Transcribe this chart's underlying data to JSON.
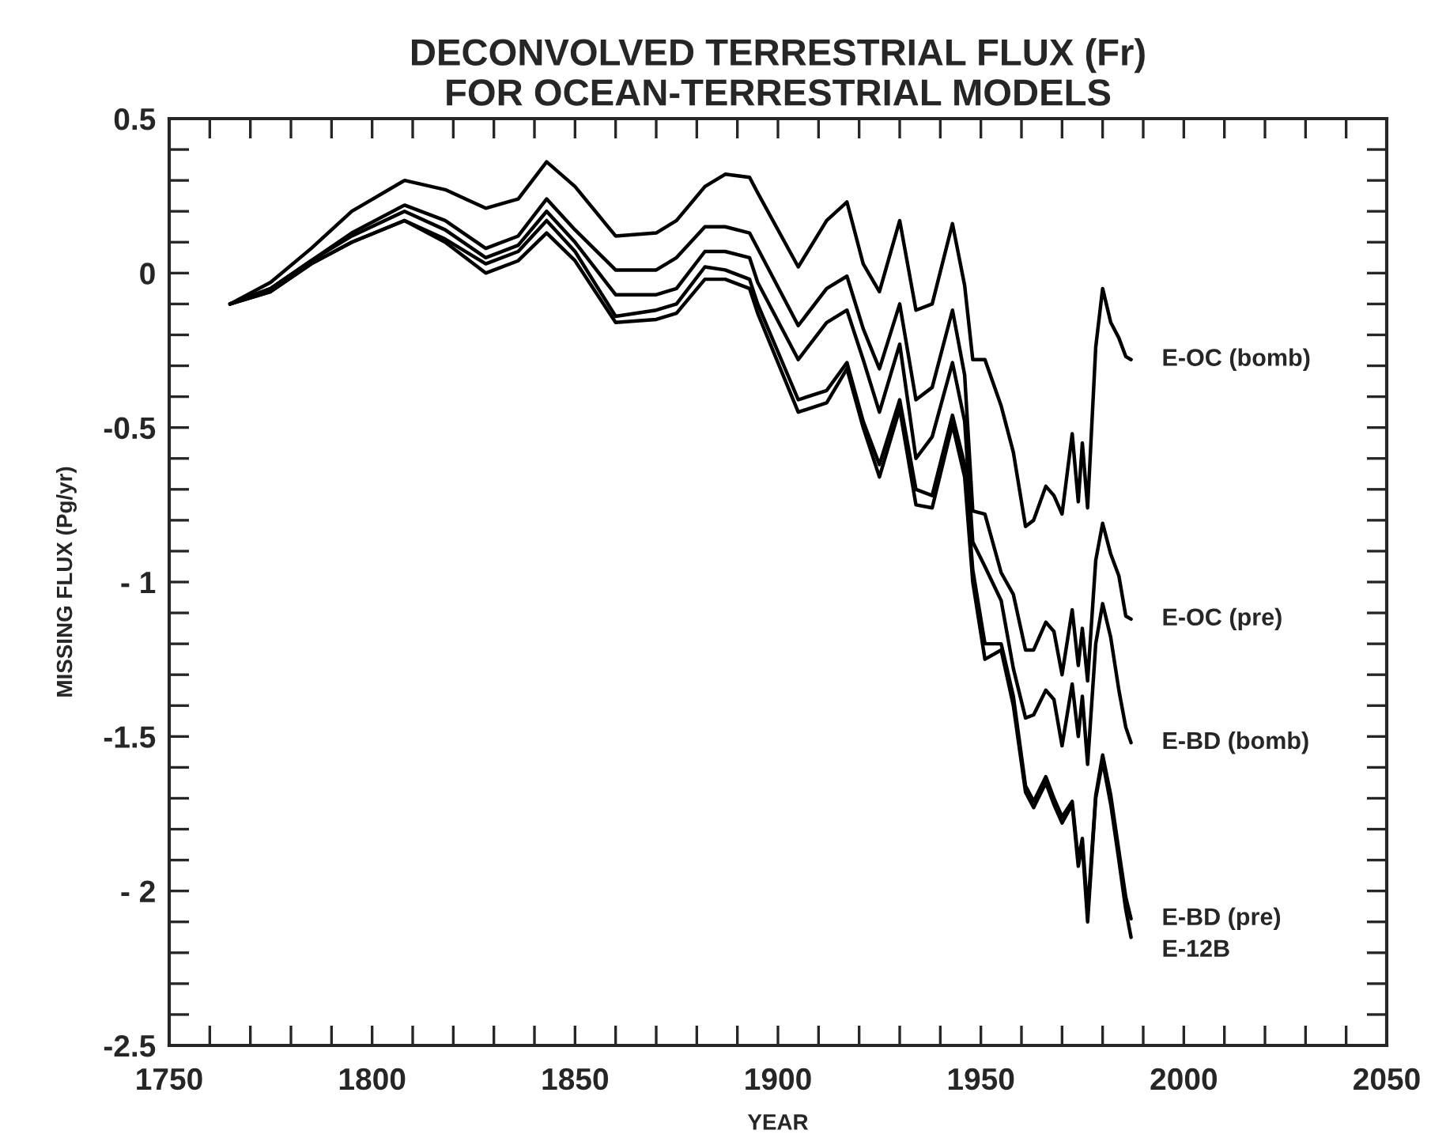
{
  "chart_data": {
    "type": "line",
    "title": "DECONVOLVED TERRESTRIAL FLUX (Fr)\nFOR OCEAN-TERRESTRIAL MODELS",
    "xlabel": "YEAR",
    "ylabel": "MISSING FLUX (Pg/yr)",
    "xlim": [
      1750,
      2050
    ],
    "ylim": [
      -2.5,
      0.5
    ],
    "grid": false,
    "legend": false,
    "marker": "none",
    "line_style": "solid",
    "xticks": [
      1750,
      {
        "value": 1760,
        "label": null
      },
      {
        "value": 1770,
        "label": null
      },
      {
        "value": 1780,
        "label": null
      },
      {
        "value": 1790,
        "label": null
      },
      1800,
      {
        "value": 1810,
        "label": null
      },
      {
        "value": 1820,
        "label": null
      },
      {
        "value": 1830,
        "label": null
      },
      {
        "value": 1840,
        "label": null
      },
      1850,
      {
        "value": 1860,
        "label": null
      },
      {
        "value": 1870,
        "label": null
      },
      {
        "value": 1880,
        "label": null
      },
      {
        "value": 1890,
        "label": null
      },
      1900,
      {
        "value": 1910,
        "label": null
      },
      {
        "value": 1920,
        "label": null
      },
      {
        "value": 1930,
        "label": null
      },
      {
        "value": 1940,
        "label": null
      },
      1950,
      {
        "value": 1960,
        "label": null
      },
      {
        "value": 1970,
        "label": null
      },
      {
        "value": 1980,
        "label": null
      },
      {
        "value": 1990,
        "label": null
      },
      2000,
      {
        "value": 2010,
        "label": null
      },
      {
        "value": 2020,
        "label": null
      },
      {
        "value": 2030,
        "label": null
      },
      {
        "value": 2040,
        "label": null
      },
      2050
    ],
    "yticks": [
      {
        "value": -2.5,
        "label": "-2.5"
      },
      {
        "value": -2.4,
        "label": null
      },
      {
        "value": -2.3,
        "label": null
      },
      {
        "value": -2.2,
        "label": null
      },
      {
        "value": -2.1,
        "label": null
      },
      {
        "value": -2,
        "label": "- 2"
      },
      {
        "value": -1.9,
        "label": null
      },
      {
        "value": -1.8,
        "label": null
      },
      {
        "value": -1.7,
        "label": null
      },
      {
        "value": -1.6,
        "label": null
      },
      {
        "value": -1.5,
        "label": "-1.5"
      },
      {
        "value": -1.4,
        "label": null
      },
      {
        "value": -1.3,
        "label": null
      },
      {
        "value": -1.2,
        "label": null
      },
      {
        "value": -1.1,
        "label": null
      },
      {
        "value": -1,
        "label": "- 1"
      },
      {
        "value": -0.9,
        "label": null
      },
      {
        "value": -0.8,
        "label": null
      },
      {
        "value": -0.7,
        "label": null
      },
      {
        "value": -0.6,
        "label": null
      },
      {
        "value": -0.5,
        "label": "-0.5"
      },
      {
        "value": -0.4,
        "label": null
      },
      {
        "value": -0.3,
        "label": null
      },
      {
        "value": -0.2,
        "label": null
      },
      {
        "value": -0.1,
        "label": null
      },
      0,
      {
        "value": 0.1,
        "label": null
      },
      {
        "value": 0.2,
        "label": null
      },
      {
        "value": 0.3,
        "label": null
      },
      {
        "value": 0.4,
        "label": null
      },
      0.5
    ],
    "x": [
      1765,
      1775,
      1785,
      1795,
      1808,
      1818,
      1828,
      1836,
      1843,
      1850,
      1860,
      1870,
      1875,
      1882,
      1887,
      1893,
      1895,
      1905,
      1912,
      1917,
      1921,
      1925,
      1930,
      1934,
      1938,
      1943,
      1946,
      1948,
      1951,
      1955,
      1958,
      1961,
      1963,
      1966,
      1968,
      1970,
      1972.5,
      1974,
      1975,
      1976.3,
      1978.3,
      1980,
      1982,
      1984,
      1985.7,
      1987
    ],
    "series": [
      {
        "name": "E-OC (bomb)",
        "color": "#000000",
        "values": [
          -0.1,
          -0.03,
          0.08,
          0.2,
          0.3,
          0.27,
          0.21,
          0.24,
          0.36,
          0.28,
          0.12,
          0.13,
          0.17,
          0.28,
          0.32,
          0.31,
          0.26,
          0.02,
          0.17,
          0.23,
          0.03,
          -0.06,
          0.17,
          -0.12,
          -0.1,
          0.16,
          -0.04,
          -0.28,
          -0.28,
          -0.43,
          -0.58,
          -0.82,
          -0.8,
          -0.69,
          -0.72,
          -0.78,
          -0.52,
          -0.74,
          -0.55,
          -0.76,
          -0.24,
          -0.05,
          -0.16,
          -0.21,
          -0.27,
          -0.28
        ]
      },
      {
        "name": "E-OC (pre)",
        "color": "#000000",
        "values": [
          -0.1,
          -0.05,
          0.04,
          0.13,
          0.22,
          0.17,
          0.08,
          0.12,
          0.24,
          0.14,
          0.01,
          0.01,
          0.05,
          0.15,
          0.15,
          0.13,
          0.08,
          -0.17,
          -0.05,
          -0.01,
          -0.18,
          -0.31,
          -0.1,
          -0.41,
          -0.37,
          -0.12,
          -0.33,
          -0.77,
          -0.78,
          -0.97,
          -1.04,
          -1.22,
          -1.22,
          -1.13,
          -1.16,
          -1.3,
          -1.09,
          -1.27,
          -1.15,
          -1.32,
          -0.93,
          -0.81,
          -0.91,
          -0.98,
          -1.11,
          -1.12
        ]
      },
      {
        "name": "E-BD (bomb)",
        "color": "#000000",
        "values": [
          -0.1,
          -0.05,
          0.04,
          0.12,
          0.2,
          0.14,
          0.05,
          0.09,
          0.2,
          0.1,
          -0.07,
          -0.07,
          -0.05,
          0.07,
          0.07,
          0.05,
          -0.03,
          -0.28,
          -0.16,
          -0.12,
          -0.28,
          -0.45,
          -0.23,
          -0.6,
          -0.53,
          -0.29,
          -0.48,
          -0.87,
          -0.95,
          -1.06,
          -1.28,
          -1.44,
          -1.43,
          -1.35,
          -1.38,
          -1.53,
          -1.33,
          -1.5,
          -1.37,
          -1.59,
          -1.2,
          -1.07,
          -1.18,
          -1.35,
          -1.47,
          -1.52
        ]
      },
      {
        "name": "E-BD (pre)",
        "color": "#000000",
        "values": [
          -0.1,
          -0.06,
          0.03,
          0.1,
          0.17,
          0.11,
          0.03,
          0.07,
          0.17,
          0.07,
          -0.14,
          -0.12,
          -0.1,
          0.02,
          0.01,
          -0.02,
          -0.1,
          -0.41,
          -0.38,
          -0.29,
          -0.48,
          -0.62,
          -0.41,
          -0.7,
          -0.72,
          -0.46,
          -0.62,
          -0.96,
          -1.2,
          -1.2,
          -1.37,
          -1.66,
          -1.71,
          -1.63,
          -1.7,
          -1.76,
          -1.71,
          -1.9,
          -1.83,
          -2.07,
          -1.69,
          -1.56,
          -1.69,
          -1.87,
          -2.02,
          -2.09
        ]
      },
      {
        "name": "E-12B",
        "color": "#000000",
        "values": [
          -0.1,
          -0.06,
          0.03,
          0.1,
          0.17,
          0.1,
          0.0,
          0.04,
          0.13,
          0.04,
          -0.16,
          -0.15,
          -0.13,
          -0.02,
          -0.02,
          -0.05,
          -0.13,
          -0.45,
          -0.42,
          -0.31,
          -0.5,
          -0.66,
          -0.44,
          -0.75,
          -0.76,
          -0.49,
          -0.66,
          -1.0,
          -1.25,
          -1.22,
          -1.4,
          -1.68,
          -1.73,
          -1.65,
          -1.72,
          -1.78,
          -1.72,
          -1.92,
          -1.85,
          -2.1,
          -1.7,
          -1.58,
          -1.72,
          -1.9,
          -2.06,
          -2.15
        ]
      }
    ]
  }
}
